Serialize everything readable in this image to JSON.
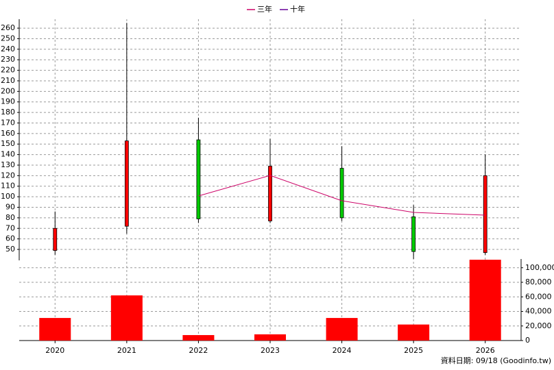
{
  "chart_data": {
    "type": "candlestick",
    "categories": [
      "2020",
      "2021",
      "2022",
      "2023",
      "2024",
      "2025",
      "2026"
    ],
    "open": [
      49,
      72,
      154,
      77,
      127,
      81,
      47
    ],
    "high": [
      86,
      265,
      175,
      155,
      148,
      92,
      140
    ],
    "low": [
      45,
      65,
      75,
      75,
      77,
      41,
      45
    ],
    "close": [
      70,
      153,
      79,
      129,
      80,
      48,
      120
    ],
    "up_color": "#ff0000",
    "down_color": "#00cc00",
    "series": [
      {
        "name": "三年",
        "color": "#cc0066",
        "values": [
          null,
          null,
          100.7,
          120.2,
          96.2,
          85.1,
          82.5
        ]
      },
      {
        "name": "十年",
        "color": "#660099",
        "values": [
          null,
          null,
          null,
          null,
          null,
          null,
          null
        ]
      }
    ],
    "legend": "top",
    "volume": {
      "type": "bar",
      "axis": "y2",
      "color": "#ff0000",
      "values": [
        31000,
        62000,
        7500,
        8500,
        31000,
        22000,
        111000
      ]
    },
    "ylim": [
      39.6,
      268.5
    ],
    "yticks": [
      50,
      60,
      70,
      80,
      90,
      100,
      110,
      120,
      130,
      140,
      150,
      160,
      170,
      180,
      190,
      200,
      210,
      220,
      230,
      240,
      250,
      260
    ],
    "y2lim": [
      0,
      112000
    ],
    "y2ticks": [
      0,
      {
        "value": 20000,
        "label": "20,000"
      },
      {
        "value": 40000,
        "label": "40,000"
      },
      {
        "value": 60000,
        "label": "60,000"
      },
      {
        "value": 80000,
        "label": "80,000"
      },
      {
        "value": 100000,
        "label": "100,000"
      }
    ],
    "grid": true,
    "footer": "資料日期: 09/18  (Goodinfo.tw)"
  }
}
